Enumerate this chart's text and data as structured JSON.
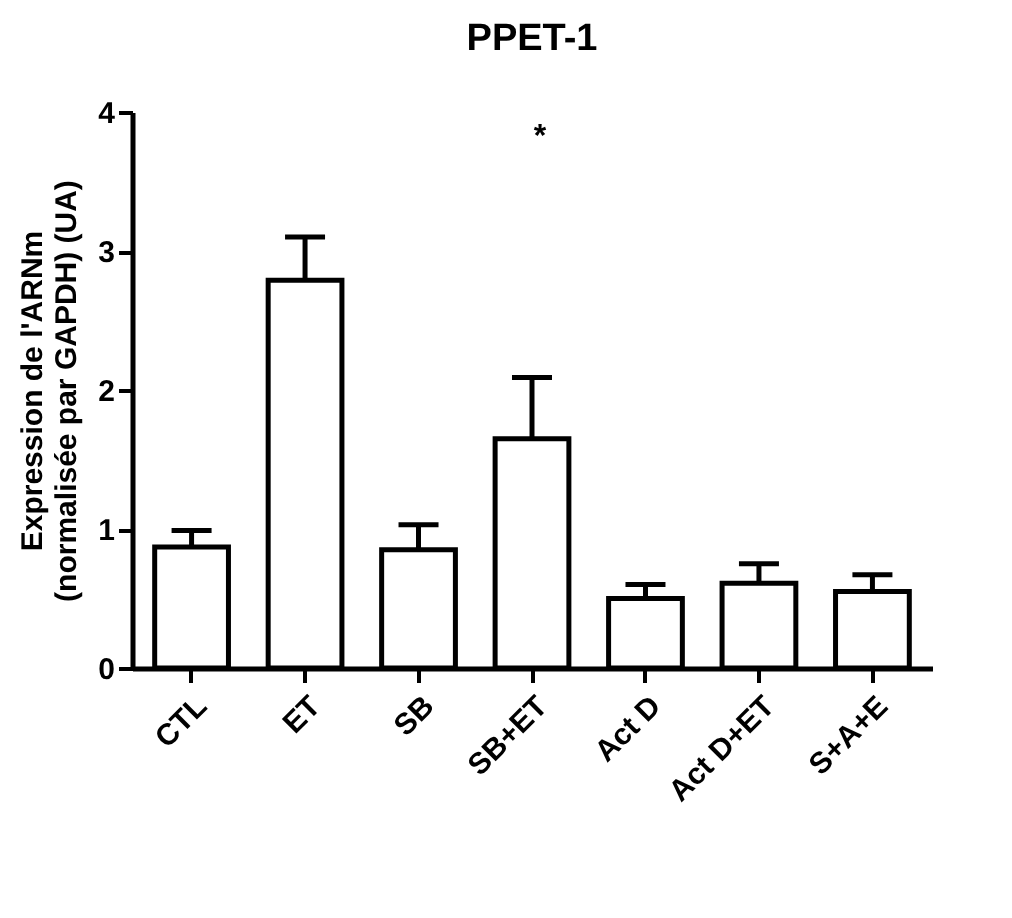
{
  "chart_data": {
    "type": "bar",
    "title": "PPET-1",
    "ylabel": "Expression de l'ARNm\n(normalisée par GAPDH) (UA)",
    "categories": [
      "CTL",
      "ET",
      "SB",
      "SB+ET",
      "Act D",
      "Act D+ET",
      "S+A+E"
    ],
    "values": [
      0.87,
      2.79,
      0.85,
      1.65,
      0.5,
      0.61,
      0.55
    ],
    "errors": [
      0.12,
      0.31,
      0.18,
      0.44,
      0.1,
      0.14,
      0.12
    ],
    "color": "#ffffff",
    "ylim": [
      0,
      4
    ],
    "yticks": [
      0,
      1,
      2,
      3,
      4
    ],
    "grid": false,
    "annotations": [
      "*"
    ]
  }
}
